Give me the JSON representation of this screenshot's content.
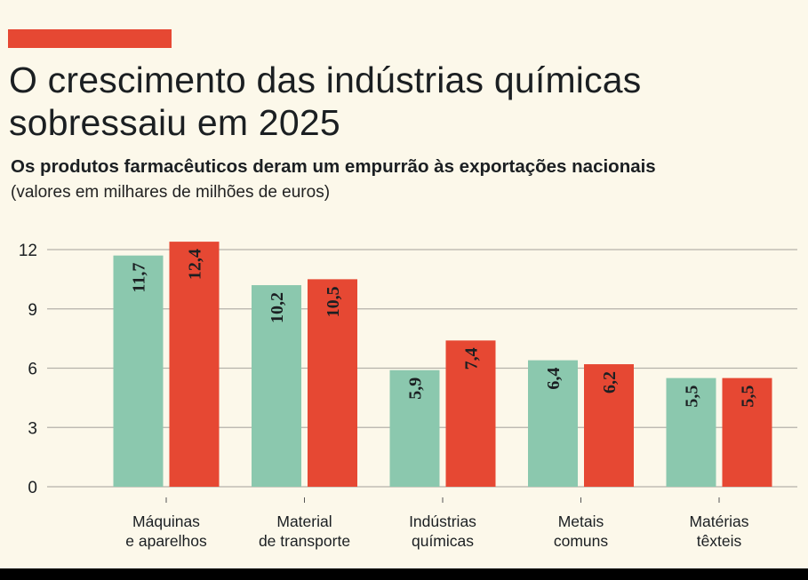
{
  "header": {
    "accent_color": "#e64833",
    "title": "O crescimento das indústrias químicas sobressaiu em 2025",
    "subtitle": "Os produtos farmacêuticos deram um empurrão às exportações nacionais",
    "note": "(valores em milhares de milhões de euros)"
  },
  "chart_data": {
    "type": "bar",
    "categories": [
      [
        "Máquinas",
        "e aparelhos"
      ],
      [
        "Material",
        "de transporte"
      ],
      [
        "Indústrias",
        "químicas"
      ],
      [
        "Metais",
        "comuns"
      ],
      [
        "Matérias",
        "têxteis"
      ]
    ],
    "series": [
      {
        "color": "#8bc8ae",
        "values": [
          11.7,
          10.2,
          5.9,
          6.4,
          5.5
        ],
        "labels": [
          "11,7",
          "10,2",
          "5,9",
          "6,4",
          "5,5"
        ]
      },
      {
        "color": "#e64833",
        "values": [
          12.4,
          10.5,
          7.4,
          6.2,
          5.5
        ],
        "labels": [
          "12,4",
          "10,5",
          "7,4",
          "6,2",
          "5,5"
        ]
      }
    ],
    "yticks": [
      0,
      3,
      6,
      9,
      12
    ],
    "ylim": [
      0,
      12
    ],
    "grid": true,
    "legend": "none",
    "xlabel": "",
    "ylabel": ""
  }
}
